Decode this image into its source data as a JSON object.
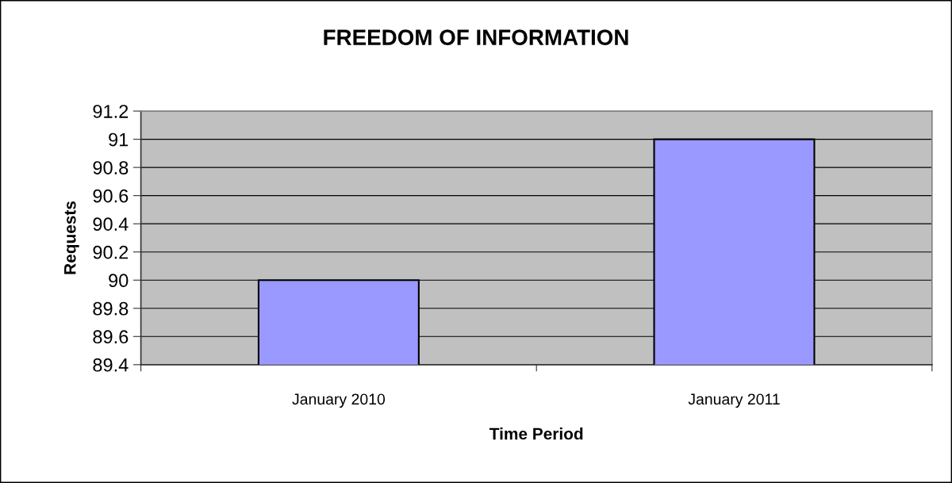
{
  "chart_data": {
    "type": "bar",
    "title": "FREEDOM OF INFORMATION",
    "xlabel": "Time Period",
    "ylabel": "Requests",
    "categories": [
      "January 2010",
      "January 2011"
    ],
    "values": [
      90,
      91
    ],
    "color": "#9999ff",
    "ylim": [
      89.4,
      91.2
    ],
    "yticks": [
      89.4,
      89.6,
      89.8,
      90,
      90.2,
      90.4,
      90.6,
      90.8,
      91,
      91.2
    ],
    "grid": "y"
  }
}
